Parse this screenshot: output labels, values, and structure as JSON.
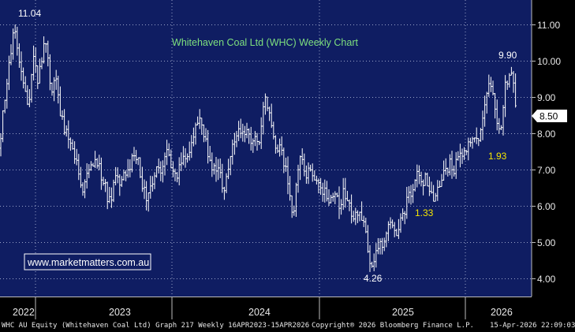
{
  "chart_data": {
    "type": "ohlc",
    "title": "Whitehaven Coal Ltd (WHC) Weekly Chart",
    "watermark": "www.marketmatters.com.au",
    "y_ticks": [
      "11.00",
      "10.00",
      "9.00",
      "8.00",
      "7.00",
      "6.00",
      "5.00",
      "4.00"
    ],
    "ylim": [
      3.65,
      11.55
    ],
    "x_ticks": [
      "2022",
      "2023",
      "2024",
      "2025",
      "2026"
    ],
    "last_price": "8.50",
    "annotations": [
      {
        "text": "11.04",
        "kind": "price"
      },
      {
        "text": "4.26",
        "kind": "price"
      },
      {
        "text": "9.90",
        "kind": "price"
      },
      {
        "text": "1.33",
        "kind": "yellow"
      },
      {
        "text": "1.93",
        "kind": "yellow"
      }
    ],
    "series_path": [
      [
        0,
        7.6
      ],
      [
        5,
        8.8
      ],
      [
        10,
        9.5
      ],
      [
        15,
        10.6
      ],
      [
        18,
        11.04
      ],
      [
        22,
        10.5
      ],
      [
        27,
        9.6
      ],
      [
        32,
        9.2
      ],
      [
        36,
        8.4
      ],
      [
        40,
        9.6
      ],
      [
        44,
        10.3
      ],
      [
        48,
        9.4
      ],
      [
        53,
        10.1
      ],
      [
        57,
        10.8
      ],
      [
        60,
        10.2
      ],
      [
        64,
        9.3
      ],
      [
        68,
        9.3
      ],
      [
        72,
        9.7
      ],
      [
        76,
        8.6
      ],
      [
        80,
        8.3
      ],
      [
        84,
        8.0
      ],
      [
        88,
        7.7
      ],
      [
        92,
        7.5
      ],
      [
        96,
        7.2
      ],
      [
        100,
        7.0
      ],
      [
        104,
        6.5
      ],
      [
        108,
        6.7
      ],
      [
        112,
        7.0
      ],
      [
        116,
        7.2
      ],
      [
        120,
        7.3
      ],
      [
        124,
        7.1
      ],
      [
        128,
        6.9
      ],
      [
        132,
        6.6
      ],
      [
        136,
        6.3
      ],
      [
        140,
        6.0
      ],
      [
        144,
        6.6
      ],
      [
        148,
        6.8
      ],
      [
        152,
        6.6
      ],
      [
        156,
        6.8
      ],
      [
        160,
        7.0
      ],
      [
        164,
        7.1
      ],
      [
        168,
        7.3
      ],
      [
        172,
        7.5
      ],
      [
        176,
        7.1
      ],
      [
        180,
        6.6
      ],
      [
        184,
        6.3
      ],
      [
        188,
        6.2
      ],
      [
        192,
        6.7
      ],
      [
        196,
        6.9
      ],
      [
        200,
        7.1
      ],
      [
        204,
        6.9
      ],
      [
        208,
        7.4
      ],
      [
        212,
        7.5
      ],
      [
        216,
        7.1
      ],
      [
        220,
        7.0
      ],
      [
        224,
        6.9
      ],
      [
        228,
        7.2
      ],
      [
        232,
        7.3
      ],
      [
        236,
        7.5
      ],
      [
        240,
        7.6
      ],
      [
        244,
        7.9
      ],
      [
        248,
        8.1
      ],
      [
        252,
        8.3
      ],
      [
        256,
        8.2
      ],
      [
        260,
        8.0
      ],
      [
        264,
        7.3
      ],
      [
        268,
        7.0
      ],
      [
        272,
        7.2
      ],
      [
        276,
        7.0
      ],
      [
        280,
        6.8
      ],
      [
        284,
        6.4
      ],
      [
        288,
        7.0
      ],
      [
        292,
        7.3
      ],
      [
        296,
        7.8
      ],
      [
        300,
        8.0
      ],
      [
        304,
        8.1
      ],
      [
        308,
        7.9
      ],
      [
        312,
        8.2
      ],
      [
        316,
        8.0
      ],
      [
        320,
        7.8
      ],
      [
        324,
        8.0
      ],
      [
        328,
        7.7
      ],
      [
        332,
        8.4
      ],
      [
        336,
        8.9
      ],
      [
        340,
        8.7
      ],
      [
        344,
        8.2
      ],
      [
        348,
        7.8
      ],
      [
        352,
        7.5
      ],
      [
        356,
        7.7
      ],
      [
        360,
        7.2
      ],
      [
        364,
        6.8
      ],
      [
        368,
        6.2
      ],
      [
        372,
        5.8
      ],
      [
        376,
        6.8
      ],
      [
        380,
        7.3
      ],
      [
        384,
        7.1
      ],
      [
        388,
        6.9
      ],
      [
        392,
        7.0
      ],
      [
        396,
        6.8
      ],
      [
        400,
        6.7
      ],
      [
        404,
        6.6
      ],
      [
        408,
        6.5
      ],
      [
        412,
        6.4
      ],
      [
        416,
        6.3
      ],
      [
        420,
        6.1
      ],
      [
        424,
        6.3
      ],
      [
        428,
        6.2
      ],
      [
        432,
        6.0
      ],
      [
        436,
        6.4
      ],
      [
        440,
        6.2
      ],
      [
        444,
        5.9
      ],
      [
        448,
        5.6
      ],
      [
        452,
        5.8
      ],
      [
        456,
        5.9
      ],
      [
        460,
        5.7
      ],
      [
        464,
        5.2
      ],
      [
        468,
        4.6
      ],
      [
        472,
        4.5
      ],
      [
        476,
        4.7
      ],
      [
        480,
        4.8
      ],
      [
        484,
        5.0
      ],
      [
        488,
        5.2
      ],
      [
        492,
        5.4
      ],
      [
        496,
        5.6
      ],
      [
        500,
        5.5
      ],
      [
        504,
        5.3
      ],
      [
        508,
        5.7
      ],
      [
        512,
        5.8
      ],
      [
        516,
        6.1
      ],
      [
        520,
        6.3
      ],
      [
        524,
        6.6
      ],
      [
        528,
        6.8
      ],
      [
        532,
        7.0
      ],
      [
        536,
        6.6
      ],
      [
        540,
        6.9
      ],
      [
        544,
        6.5
      ],
      [
        548,
        6.2
      ],
      [
        552,
        6.4
      ],
      [
        556,
        6.6
      ],
      [
        560,
        6.8
      ],
      [
        564,
        6.9
      ],
      [
        568,
        7.1
      ],
      [
        572,
        7.2
      ],
      [
        576,
        7.0
      ],
      [
        580,
        7.3
      ],
      [
        584,
        7.5
      ],
      [
        588,
        7.4
      ],
      [
        592,
        7.7
      ],
      [
        596,
        7.9
      ],
      [
        600,
        8.0
      ],
      [
        604,
        7.7
      ],
      [
        608,
        8.0
      ],
      [
        612,
        8.6
      ],
      [
        616,
        9.1
      ],
      [
        620,
        9.5
      ],
      [
        624,
        9.2
      ],
      [
        628,
        8.6
      ],
      [
        632,
        7.9
      ],
      [
        636,
        8.3
      ],
      [
        640,
        9.3
      ],
      [
        644,
        9.6
      ],
      [
        648,
        9.9
      ],
      [
        652,
        9.1
      ],
      [
        656,
        8.5
      ]
    ]
  },
  "footer": {
    "left": "WHC AU Equity (Whitehaven Coal Ltd) Graph 217 Weekly 16APR2023-15APR2026",
    "center": "Copyright® 2026 Bloomberg Finance L.P.",
    "right": "15-Apr-2026 22:09:03"
  }
}
